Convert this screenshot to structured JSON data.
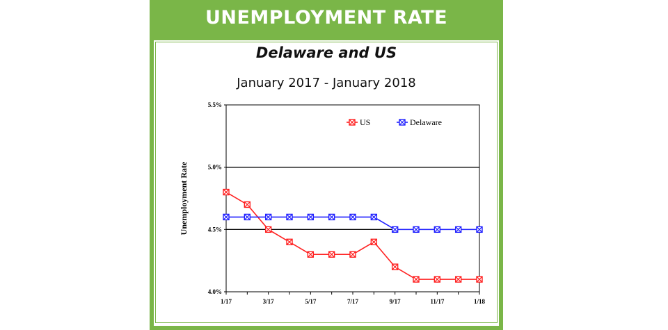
{
  "header": {
    "banner": "UNEMPLOYMENT RATE"
  },
  "colors": {
    "accent": "#7ab648",
    "us": "#ff2020",
    "delaware": "#2020ff"
  },
  "chart_data": {
    "type": "line",
    "title": "Delaware and US",
    "subtitle": "January 2017 - January 2018",
    "ylabel": "Unemployment Rate",
    "xlabel": "",
    "x": [
      "1/17",
      "2/17",
      "3/17",
      "4/17",
      "5/17",
      "6/17",
      "7/17",
      "8/17",
      "9/17",
      "10/17",
      "11/17",
      "12/17",
      "1/18"
    ],
    "x_tick_labels": [
      "1/17",
      "",
      "3/17",
      "",
      "5/17",
      "",
      "7/17",
      "",
      "9/17",
      "",
      "11/17",
      "",
      "1/18"
    ],
    "y_ticks": [
      "4.0%",
      "4.5%",
      "5.0%",
      "5.5%"
    ],
    "ylim": [
      4.0,
      5.5
    ],
    "grid": "major horizontal lines at 4.5% and 5.0%",
    "legend": "top-right",
    "series": [
      {
        "name": "US",
        "values": [
          4.8,
          4.7,
          4.5,
          4.4,
          4.3,
          4.3,
          4.3,
          4.4,
          4.2,
          4.1,
          4.1,
          4.1,
          4.1
        ]
      },
      {
        "name": "Delaware",
        "values": [
          4.6,
          4.6,
          4.6,
          4.6,
          4.6,
          4.6,
          4.6,
          4.6,
          4.5,
          4.5,
          4.5,
          4.5,
          4.5
        ]
      }
    ]
  }
}
